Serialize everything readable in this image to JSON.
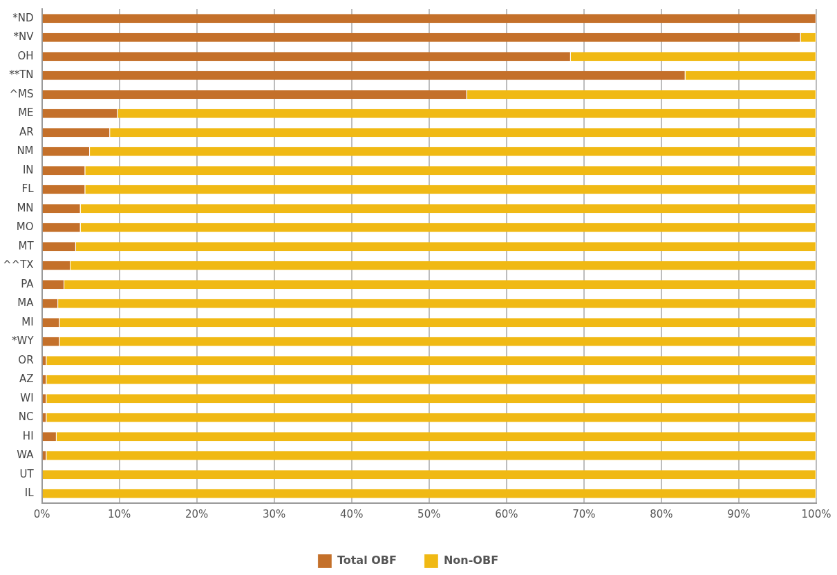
{
  "chart_data": {
    "type": "bar",
    "orientation": "horizontal",
    "stacked": true,
    "categories": [
      "*ND",
      "*NV",
      "OH",
      "**TN",
      "^MS",
      "ME",
      "AR",
      "NM",
      "IN",
      "FL",
      "MN",
      "MO",
      "MT",
      "^^TX",
      "PA",
      "MA",
      "MI",
      "*WY",
      "OR",
      "AZ",
      "WI",
      "NC",
      "HI",
      "WA",
      "UT",
      "IL"
    ],
    "series": [
      {
        "name": "Total OBF",
        "color": "#c4702a",
        "values": [
          100,
          98,
          68.3,
          83.1,
          54.9,
          9.8,
          8.8,
          6.2,
          5.6,
          5.6,
          5,
          5,
          4.4,
          3.7,
          2.9,
          2.1,
          2.3,
          2.3,
          0.6,
          0.6,
          0.6,
          0.6,
          1.9,
          0.6,
          0,
          0
        ]
      },
      {
        "name": "Non-OBF",
        "color": "#f0b914",
        "values": [
          0,
          2,
          31.7,
          16.9,
          45.1,
          90.2,
          91.2,
          93.8,
          94.4,
          94.4,
          95,
          95,
          95.6,
          96.3,
          97.1,
          97.9,
          97.7,
          97.7,
          99.4,
          99.4,
          99.4,
          99.4,
          98.1,
          99.4,
          100,
          100
        ]
      }
    ],
    "xlim": [
      0,
      100
    ],
    "xticks": [
      {
        "value": 0,
        "label": "0%"
      },
      {
        "value": 10,
        "label": "10%"
      },
      {
        "value": 20,
        "label": "20%"
      },
      {
        "value": 30,
        "label": "30%"
      },
      {
        "value": 40,
        "label": "40%"
      },
      {
        "value": 50,
        "label": "50%"
      },
      {
        "value": 60,
        "label": "60%"
      },
      {
        "value": 70,
        "label": "70%"
      },
      {
        "value": 80,
        "label": "80%"
      },
      {
        "value": 90,
        "label": "90%"
      },
      {
        "value": 100,
        "label": "100%"
      }
    ],
    "grid": "x",
    "legend": "bottom"
  }
}
